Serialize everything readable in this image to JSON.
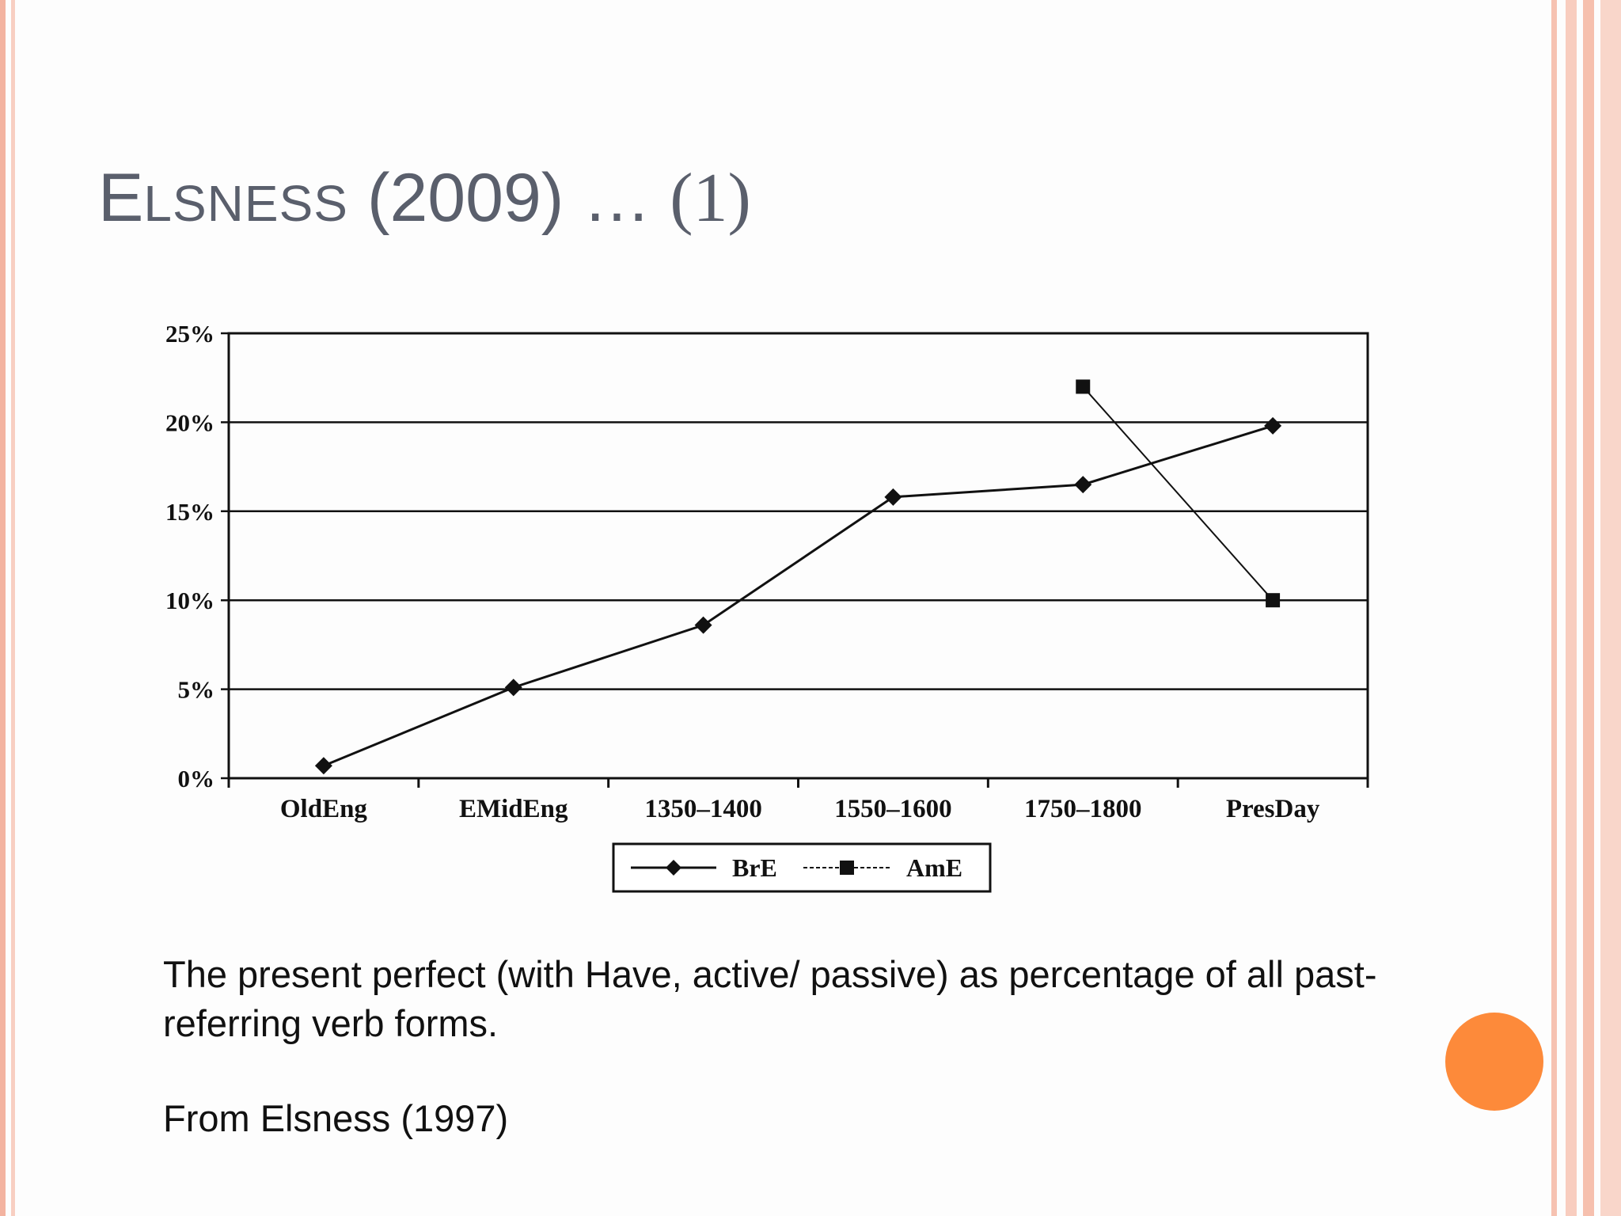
{
  "slide": {
    "title_cap": "E",
    "title_rest": "LSNESS",
    "title_year": " (2009) … ",
    "title_num": "(1)",
    "caption": "The present perfect (with Have, active/ passive) as percentage of all past-referring verb forms.",
    "source": "From Elsness (1997)"
  },
  "colors": {
    "accent_circle": "#fd8a3a",
    "title": "#5a5f6c",
    "border": "#f6c2b1"
  },
  "chart_data": {
    "type": "line",
    "title": "",
    "xlabel": "",
    "ylabel": "",
    "categories": [
      "OldEng",
      "EMidEng",
      "1350–1400",
      "1550–1600",
      "1750–1800",
      "PresDay"
    ],
    "ylim": [
      0,
      25
    ],
    "yticks": [
      "0%",
      "5%",
      "10%",
      "15%",
      "20%",
      "25%"
    ],
    "grid": true,
    "legend_position": "bottom-center",
    "series": [
      {
        "name": "BrE",
        "marker": "diamond",
        "values": [
          0.7,
          5.1,
          8.6,
          15.8,
          16.5,
          19.8
        ]
      },
      {
        "name": "AmE",
        "marker": "square",
        "values": [
          null,
          null,
          null,
          null,
          22.0,
          10.0
        ]
      }
    ]
  }
}
